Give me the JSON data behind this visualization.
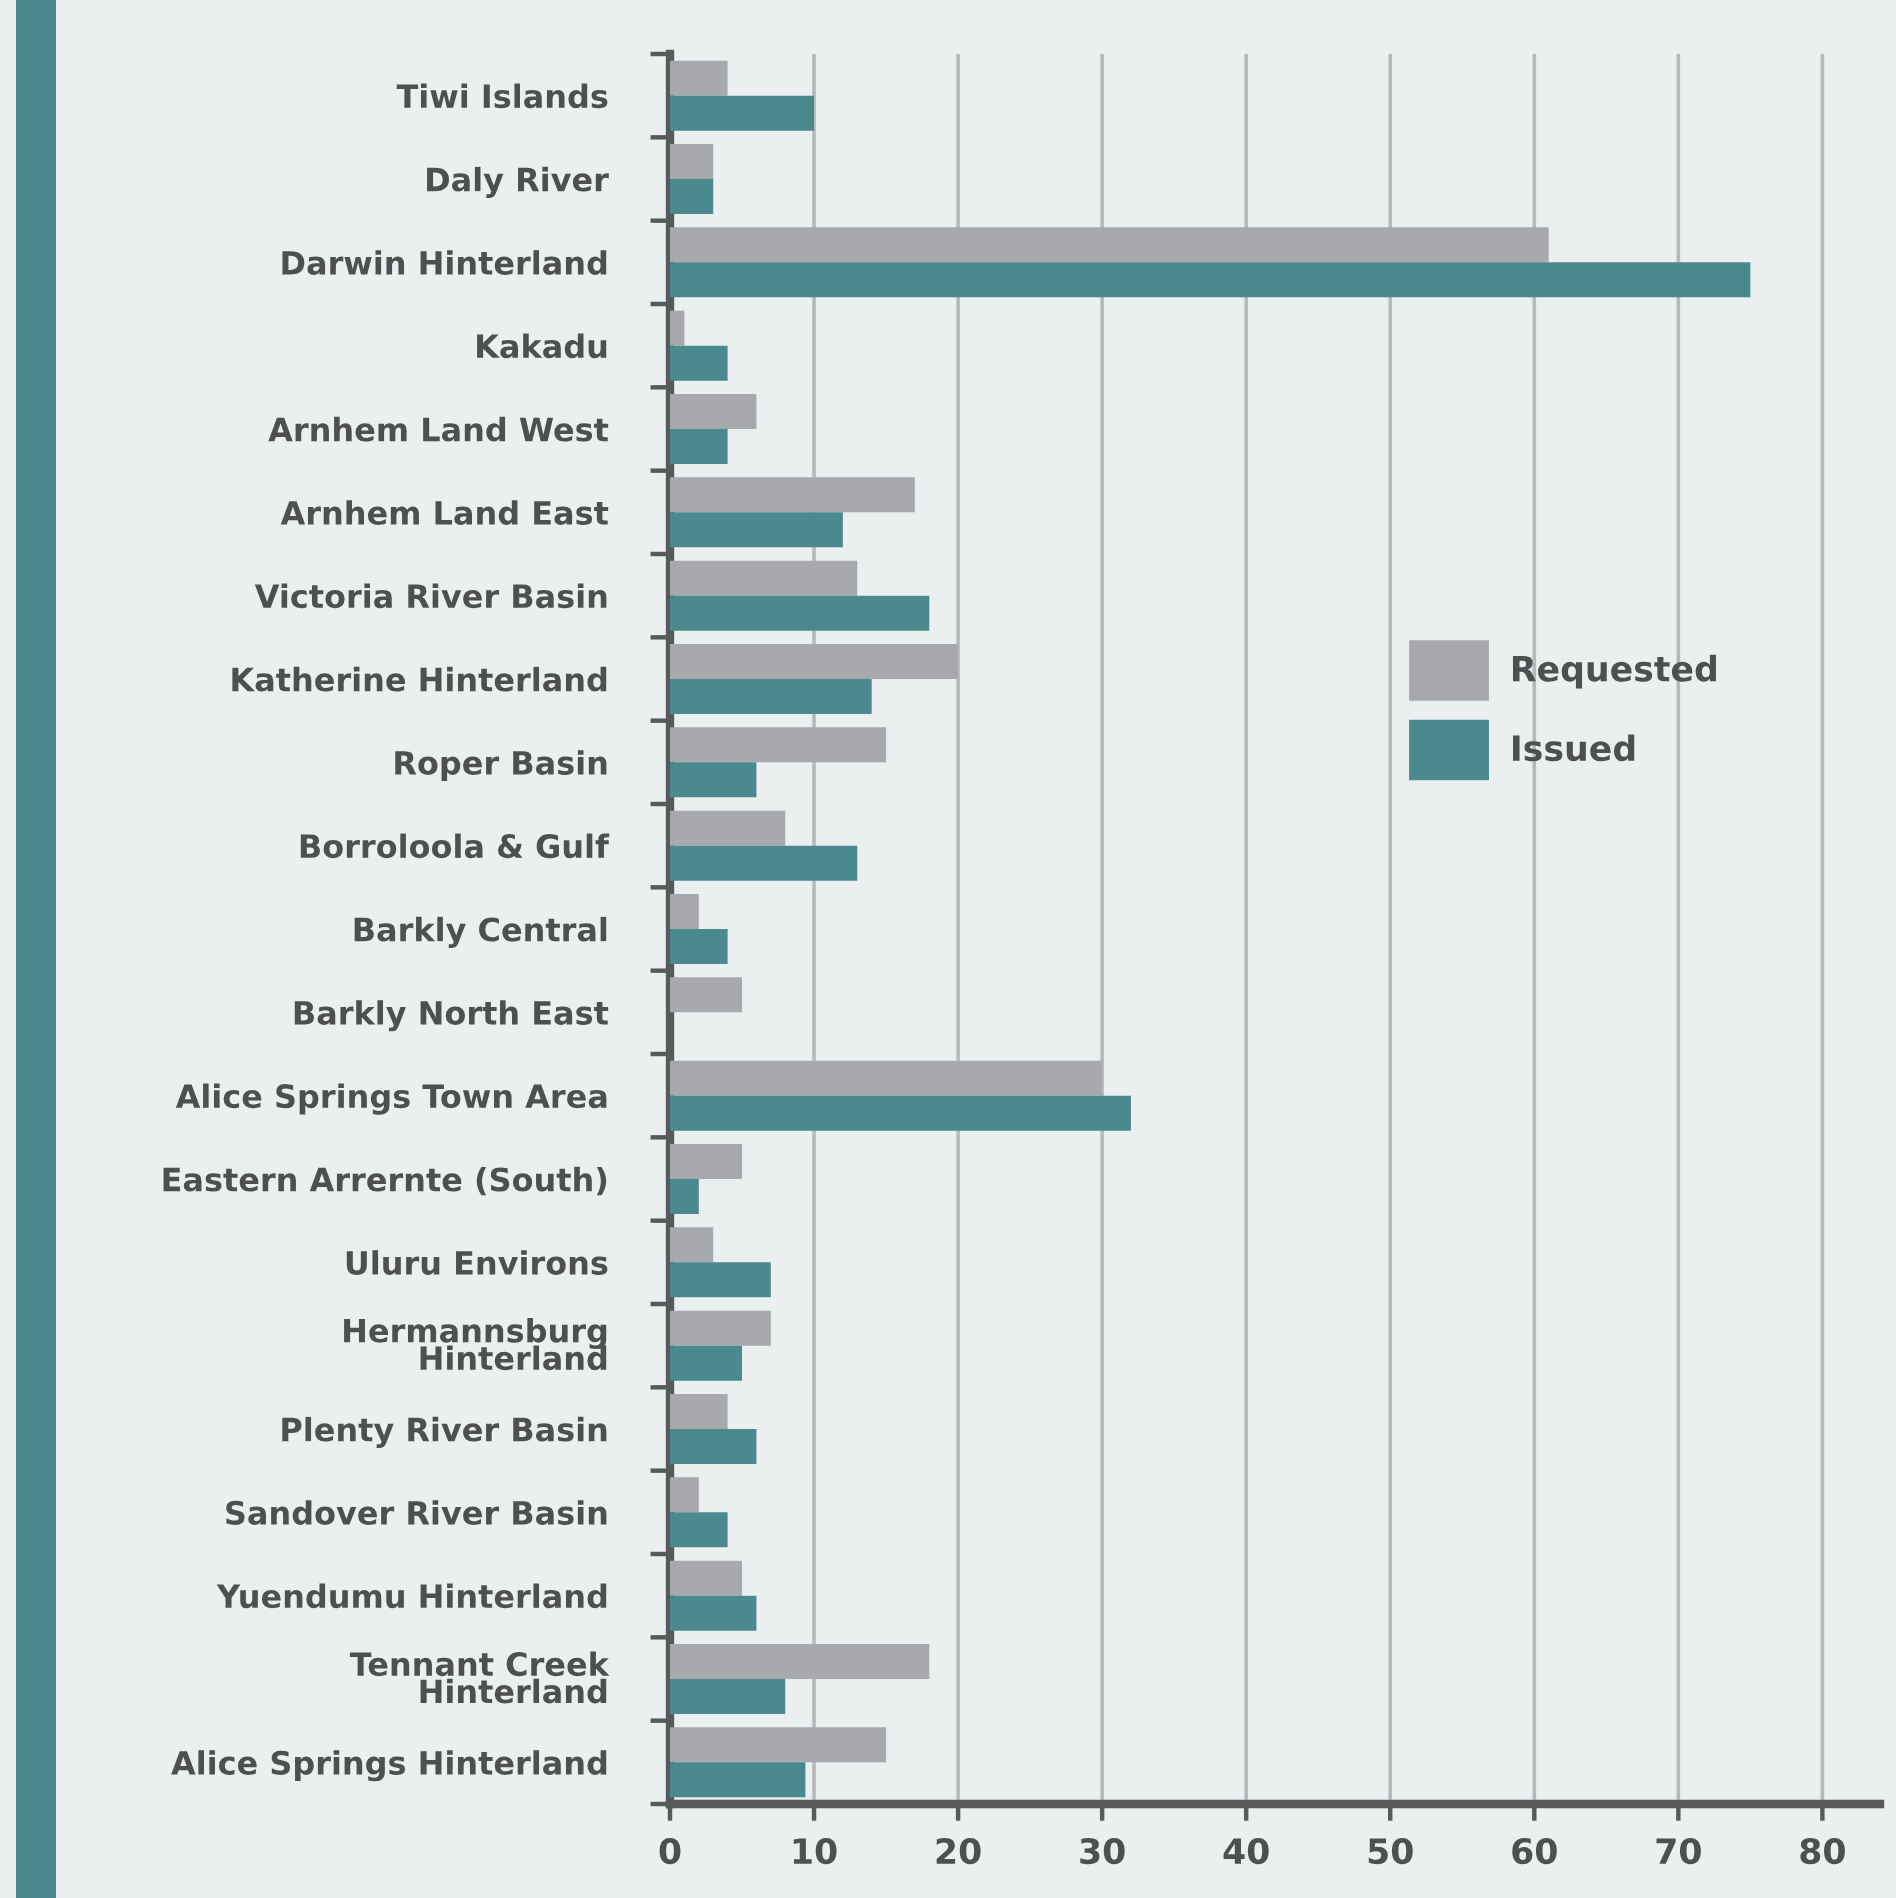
{
  "chart_data": {
    "type": "bar",
    "orientation": "horizontal",
    "categories": [
      "Tiwi Islands",
      "Daly River",
      "Darwin Hinterland",
      "Kakadu",
      "Arnhem Land West",
      "Arnhem Land East",
      "Victoria River Basin",
      "Katherine Hinterland",
      "Roper Basin",
      "Borroloola & Gulf",
      "Barkly Central",
      "Barkly North East",
      "Alice Springs Town Area",
      "Eastern Arrernte (South)",
      "Uluru Environs",
      "Hermannsburg\nHinterland",
      "Plenty River Basin",
      "Sandover River Basin",
      "Yuendumu Hinterland",
      "Tennant Creek\nHinterland",
      "Alice Springs Hinterland"
    ],
    "series": [
      {
        "name": "Requested",
        "color": "#a8a9ad",
        "values": [
          4,
          3,
          61,
          1,
          6,
          17,
          13,
          20,
          15,
          8,
          2,
          5,
          30,
          5,
          3,
          7,
          4,
          2,
          5,
          18,
          15
        ]
      },
      {
        "name": "Issued",
        "color": "#4a8a8f",
        "values": [
          10,
          3,
          75,
          4,
          4,
          12,
          18,
          14,
          6,
          13,
          4,
          null,
          32,
          2,
          7,
          5,
          6,
          4,
          6,
          8,
          9.4
        ]
      }
    ],
    "xlim": [
      0,
      84
    ],
    "xticks": [
      0,
      10,
      20,
      30,
      40,
      50,
      60,
      70,
      80
    ],
    "grid": "x",
    "legend": "right"
  }
}
